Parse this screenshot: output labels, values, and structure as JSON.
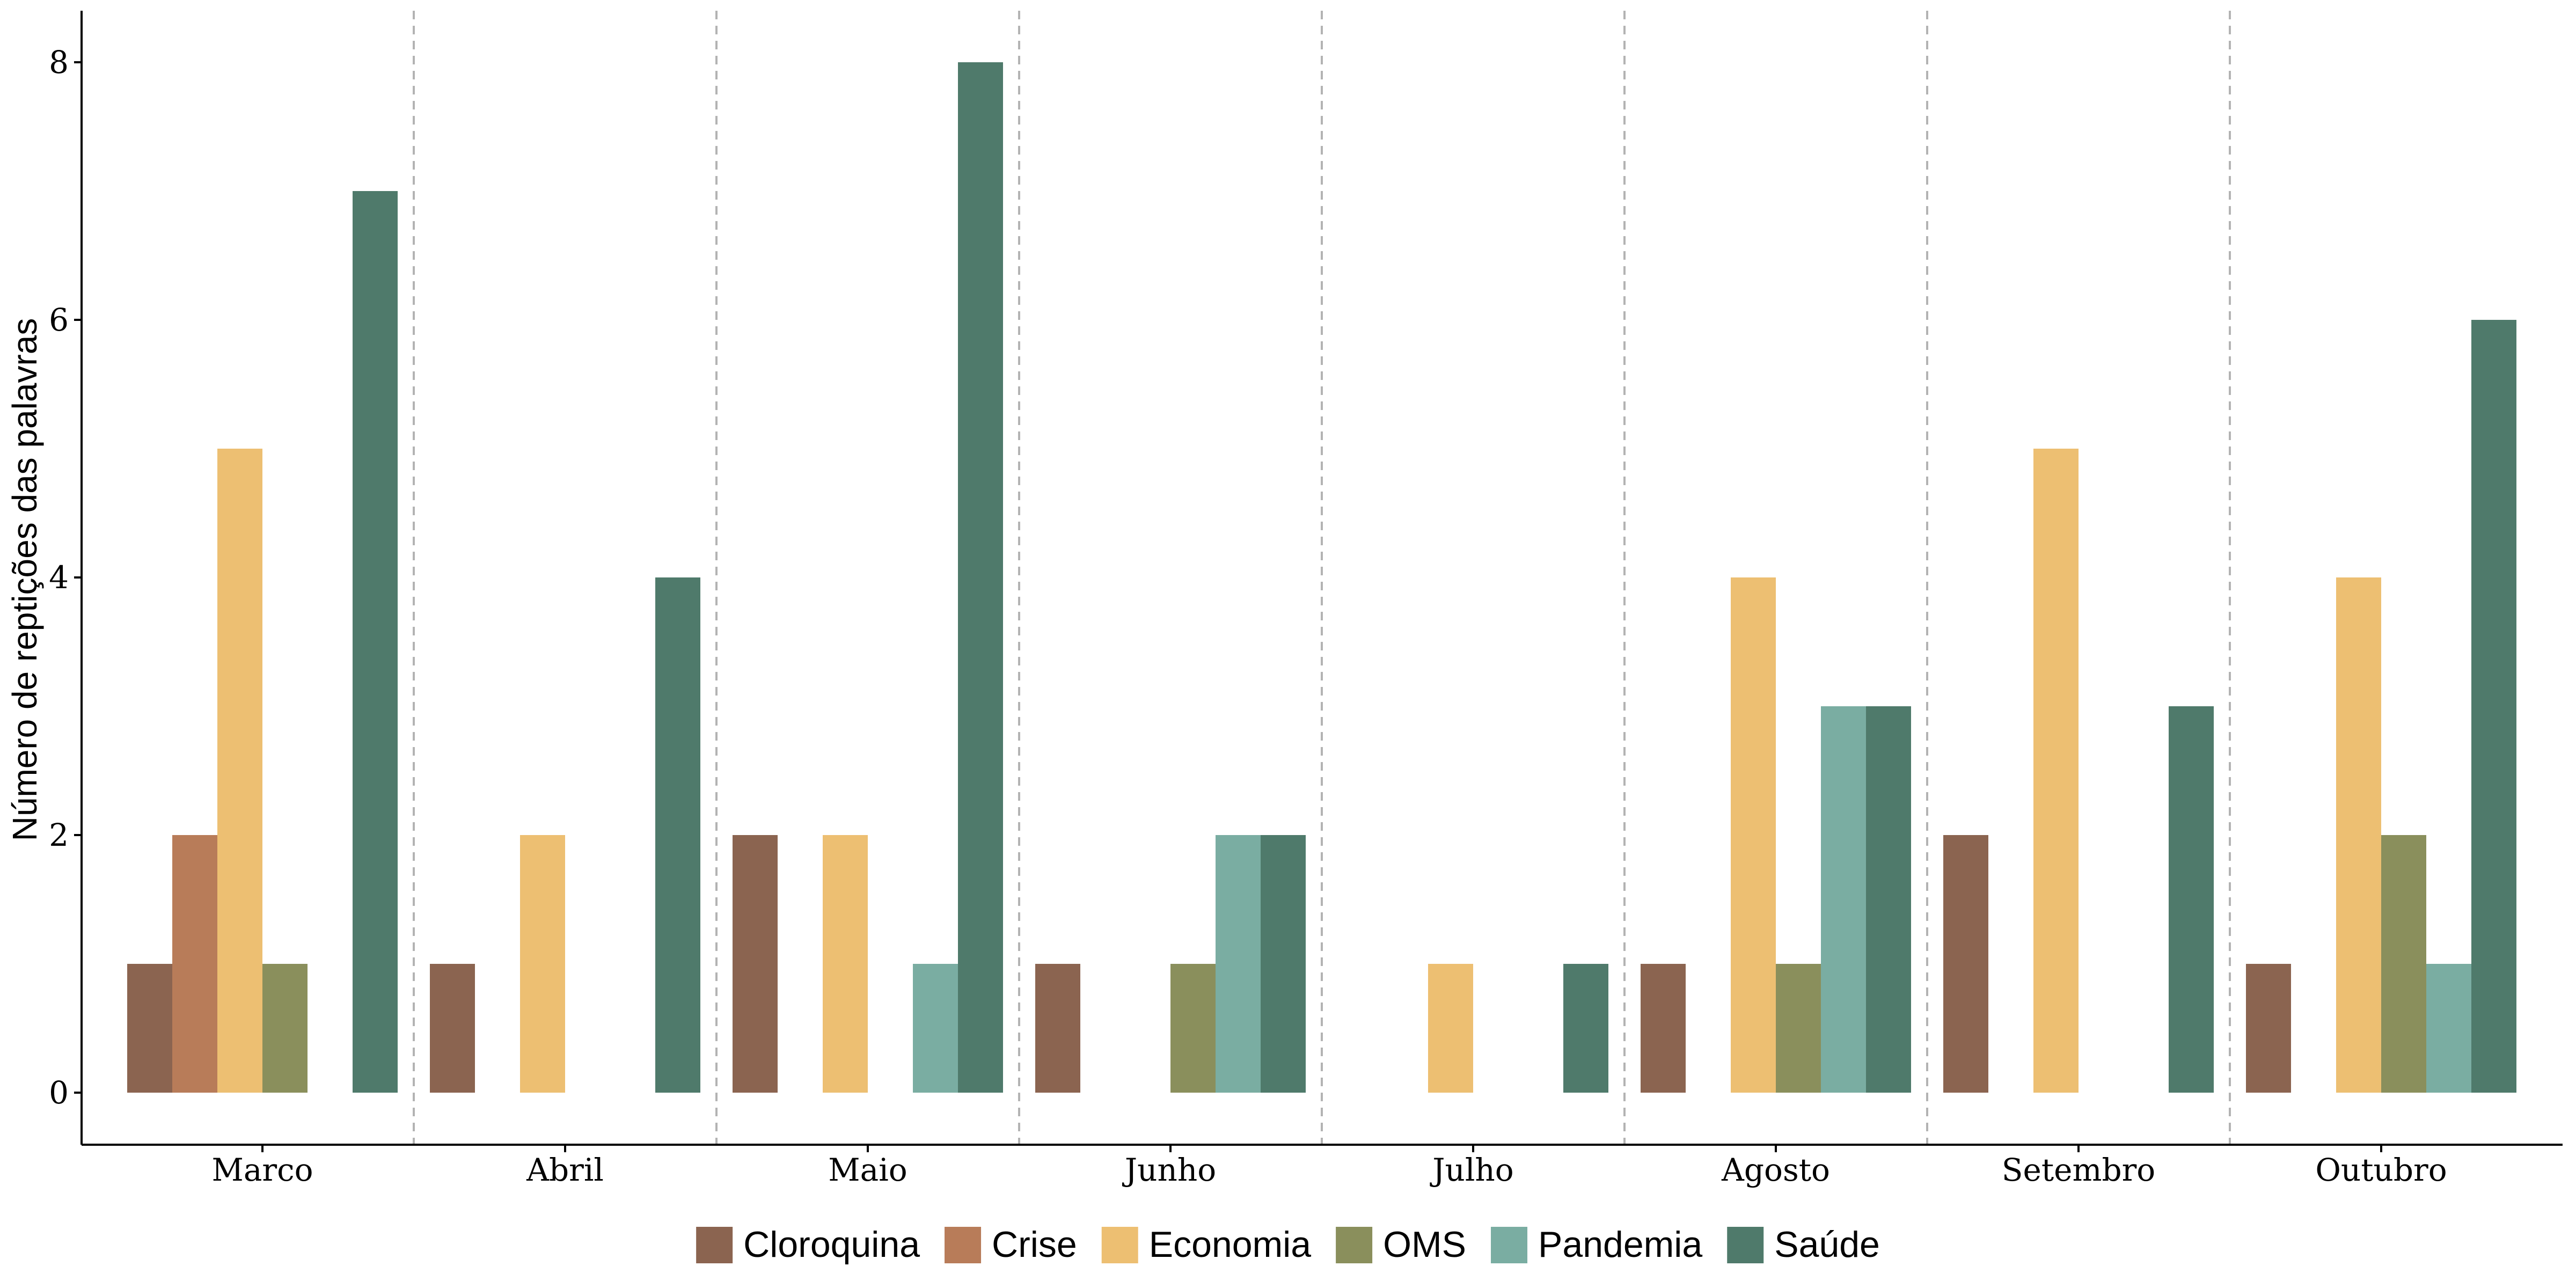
{
  "chart_data": {
    "type": "bar",
    "title": "",
    "xlabel": "",
    "ylabel": "Número de reptições das palavras",
    "ylim": [
      0,
      8.4
    ],
    "yticks": [
      0,
      2,
      4,
      6,
      8
    ],
    "grid": false,
    "group_separators": "dashed",
    "legend_position": "bottom",
    "categories": [
      "Marco",
      "Abril",
      "Maio",
      "Junho",
      "Julho",
      "Agosto",
      "Setembro",
      "Outubro"
    ],
    "series": [
      {
        "name": "Cloroquina",
        "color": "#8B6450",
        "values": [
          1,
          1,
          2,
          1,
          0,
          1,
          2,
          1
        ]
      },
      {
        "name": "Crise",
        "color": "#B87C59",
        "values": [
          2,
          0,
          0,
          0,
          0,
          0,
          0,
          0
        ]
      },
      {
        "name": "Economia",
        "color": "#EDBF72",
        "values": [
          5,
          2,
          2,
          0,
          1,
          4,
          5,
          4
        ]
      },
      {
        "name": "OMS",
        "color": "#8A8F5C",
        "values": [
          1,
          0,
          0,
          1,
          0,
          1,
          0,
          2
        ]
      },
      {
        "name": "Pandemia",
        "color": "#7AADA2",
        "values": [
          0,
          0,
          1,
          2,
          0,
          3,
          0,
          1
        ]
      },
      {
        "name": "Saúde",
        "color": "#4F7A6B",
        "values": [
          7,
          4,
          8,
          2,
          1,
          3,
          3,
          6
        ]
      }
    ]
  }
}
